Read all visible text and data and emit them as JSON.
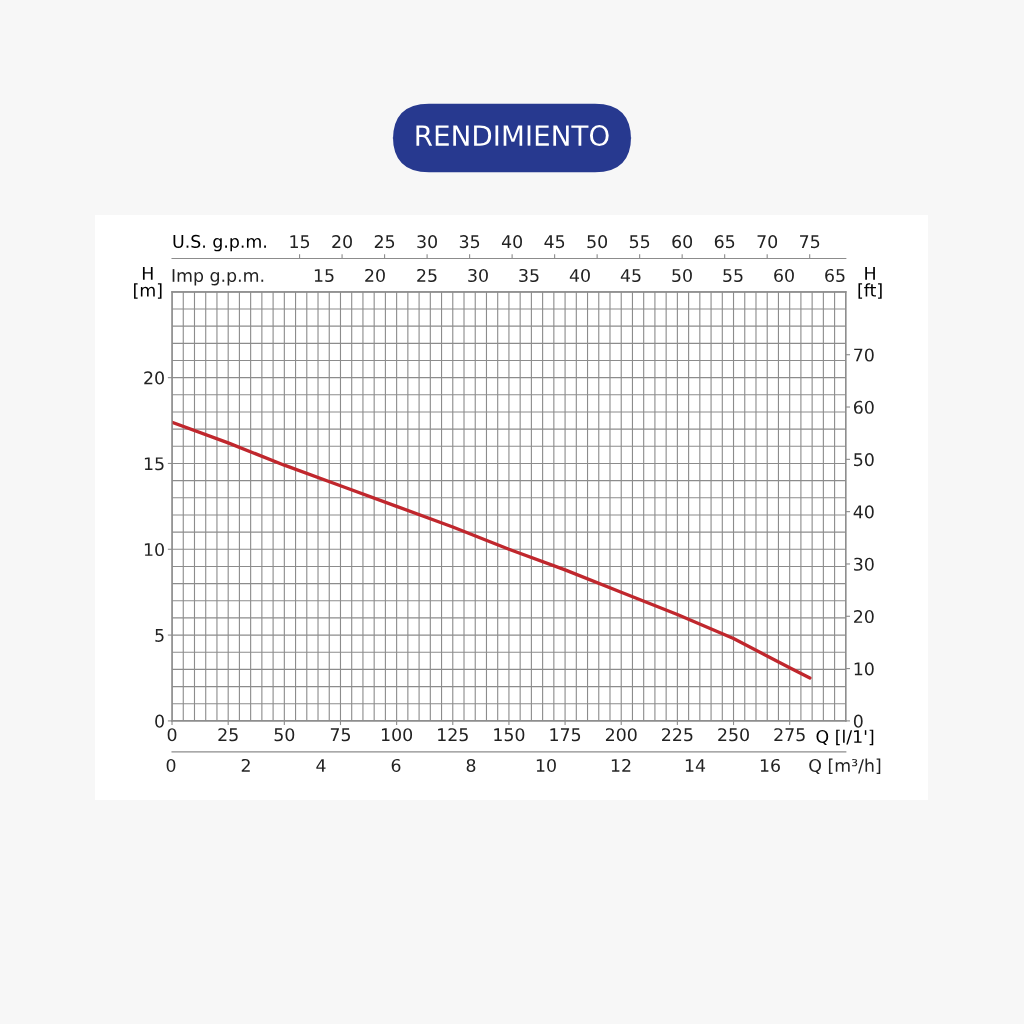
{
  "chart_data": {
    "type": "line",
    "title": "RENDIMIENTO",
    "xlabel": "Q [l/1']",
    "ylabel": "H\n[m]",
    "y2label": "H\n[ft]",
    "x2label": "U.S. g.p.m.",
    "xlim": [
      0,
      300
    ],
    "xticks": [
      0,
      25,
      50,
      75,
      100,
      125,
      150,
      175,
      200,
      225,
      250,
      275
    ],
    "ylim": [
      0,
      25
    ],
    "yticks": [
      0,
      5,
      10,
      15,
      20
    ],
    "y2lim": [
      0,
      82.02
    ],
    "y2ticks": [
      0,
      10,
      20,
      30,
      40,
      50,
      60,
      70
    ],
    "x2lim": [
      0,
      79.25
    ],
    "x2ticks": [
      15,
      20,
      25,
      30,
      35,
      40,
      45,
      50,
      55,
      60,
      65,
      70,
      75
    ],
    "grid": true,
    "annotations": [
      "Imp g.p.m.",
      "15",
      "20",
      "25",
      "30",
      "35",
      "40",
      "45",
      "50",
      "55",
      "60",
      "65",
      "0",
      "2",
      "4",
      "6",
      "8",
      "10",
      "12",
      "14",
      "16",
      "Q [m³/h]"
    ],
    "series": [
      {
        "color": "#c0272d",
        "x": [
          0,
          25,
          50,
          75,
          100,
          125,
          150,
          175,
          200,
          225,
          250,
          275,
          284
        ],
        "values": [
          17.4,
          16.2,
          14.9,
          13.7,
          12.5,
          11.3,
          10.0,
          8.8,
          7.5,
          6.2,
          4.8,
          3.1,
          2.5
        ]
      }
    ]
  }
}
